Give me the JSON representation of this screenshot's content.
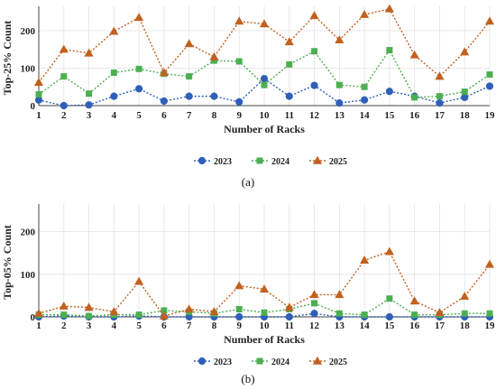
{
  "chart_data": [
    {
      "type": "line",
      "panel_label": "(a)",
      "xlabel": "Number of Racks",
      "ylabel": "Top-25% Count",
      "x": [
        1,
        2,
        3,
        4,
        5,
        6,
        7,
        8,
        9,
        10,
        11,
        12,
        13,
        14,
        15,
        16,
        17,
        18,
        19
      ],
      "xlim": [
        1,
        19
      ],
      "ylim": [
        0,
        265
      ],
      "yticks": [
        0,
        100,
        200
      ],
      "grid": true,
      "legend_position": "bottom-center",
      "series": [
        {
          "name": "2023",
          "color": "#2f5fb8",
          "marker": "circle",
          "values": [
            15,
            0,
            2,
            25,
            45,
            12,
            25,
            25,
            10,
            72,
            25,
            54,
            7,
            15,
            38,
            25,
            7,
            22,
            52
          ]
        },
        {
          "name": "2024",
          "color": "#4caf50",
          "marker": "square",
          "values": [
            30,
            78,
            32,
            88,
            98,
            85,
            78,
            120,
            118,
            55,
            110,
            145,
            55,
            50,
            148,
            22,
            25,
            37,
            83
          ]
        },
        {
          "name": "2025",
          "color": "#c2601e",
          "marker": "triangle",
          "values": [
            62,
            150,
            140,
            198,
            235,
            88,
            165,
            130,
            225,
            218,
            170,
            240,
            175,
            243,
            258,
            135,
            78,
            143,
            225
          ]
        }
      ]
    },
    {
      "type": "line",
      "panel_label": "(b)",
      "xlabel": "Number of Racks",
      "ylabel": "Top-05% Count",
      "x": [
        1,
        2,
        3,
        4,
        5,
        6,
        7,
        8,
        9,
        10,
        11,
        12,
        13,
        14,
        15,
        16,
        17,
        18,
        19
      ],
      "xlim": [
        1,
        19
      ],
      "ylim": [
        0,
        265
      ],
      "yticks": [
        0,
        100,
        200
      ],
      "grid": true,
      "legend_position": "bottom-center",
      "series": [
        {
          "name": "2023",
          "color": "#2f5fb8",
          "marker": "circle",
          "values": [
            0,
            2,
            0,
            0,
            2,
            0,
            0,
            0,
            0,
            0,
            0,
            8,
            0,
            0,
            0,
            0,
            0,
            0,
            0
          ]
        },
        {
          "name": "2024",
          "color": "#4caf50",
          "marker": "square",
          "values": [
            5,
            5,
            2,
            5,
            5,
            15,
            12,
            8,
            18,
            10,
            18,
            32,
            8,
            5,
            43,
            5,
            5,
            8,
            8
          ]
        },
        {
          "name": "2025",
          "color": "#c2601e",
          "marker": "triangle",
          "values": [
            8,
            25,
            22,
            12,
            83,
            2,
            18,
            12,
            73,
            65,
            22,
            52,
            52,
            133,
            153,
            37,
            10,
            48,
            123
          ]
        }
      ]
    }
  ]
}
